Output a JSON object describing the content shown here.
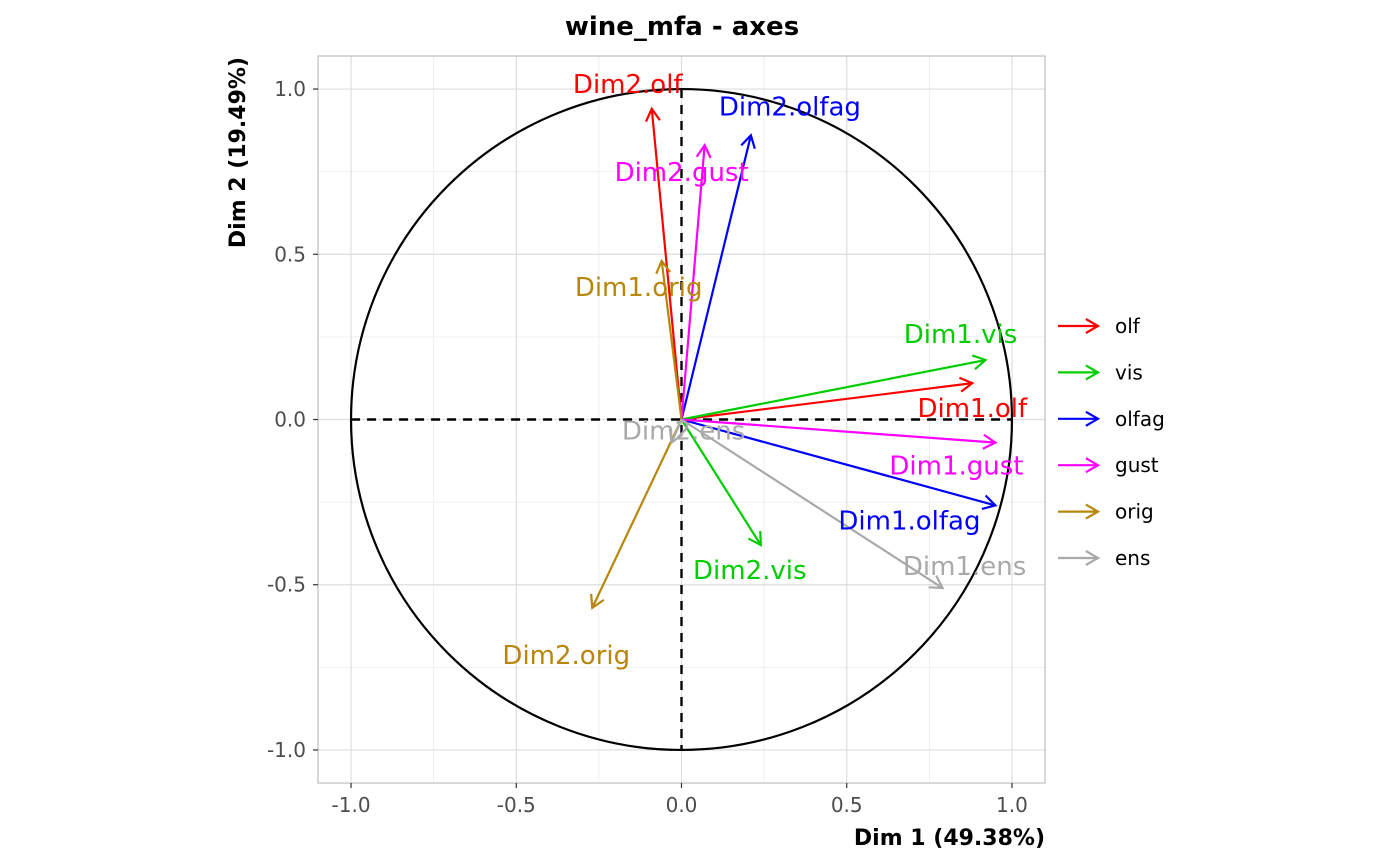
{
  "chart_data": {
    "type": "scatter",
    "title": "wine_mfa - axes",
    "xlabel": "Dim 1 (49.38%)",
    "ylabel": "Dim 2 (19.49%)",
    "xlim": [
      -1.1,
      1.1
    ],
    "ylim": [
      -1.1,
      1.1
    ],
    "x_ticks": [
      -1.0,
      -0.5,
      0.0,
      0.5,
      1.0
    ],
    "x_tick_labels": [
      "-1.0",
      "-0.5",
      "0.0",
      "0.5",
      "1.0"
    ],
    "y_ticks": [
      -1.0,
      -0.5,
      0.0,
      0.5,
      1.0
    ],
    "y_tick_labels": [
      "-1.0",
      "-0.5",
      "0.0",
      "0.5",
      "1.0"
    ],
    "grid": true,
    "unit_circle": true,
    "legend_position": "right",
    "groups": [
      {
        "name": "olf",
        "color": "#ff0000"
      },
      {
        "name": "vis",
        "color": "#00cd00"
      },
      {
        "name": "olfag",
        "color": "#0000ff"
      },
      {
        "name": "gust",
        "color": "#ff00ff"
      },
      {
        "name": "orig",
        "color": "#b8860b"
      },
      {
        "name": "ens",
        "color": "#a9a9a9"
      }
    ],
    "vectors": [
      {
        "label": "Dim1.olf",
        "group": "olf",
        "x": 0.88,
        "y": 0.11
      },
      {
        "label": "Dim2.olf",
        "group": "olf",
        "x": -0.09,
        "y": 0.94
      },
      {
        "label": "Dim1.vis",
        "group": "vis",
        "x": 0.92,
        "y": 0.18
      },
      {
        "label": "Dim2.vis",
        "group": "vis",
        "x": 0.24,
        "y": -0.38
      },
      {
        "label": "Dim1.olfag",
        "group": "olfag",
        "x": 0.95,
        "y": -0.26
      },
      {
        "label": "Dim2.olfag",
        "group": "olfag",
        "x": 0.21,
        "y": 0.86
      },
      {
        "label": "Dim1.gust",
        "group": "gust",
        "x": 0.95,
        "y": -0.07
      },
      {
        "label": "Dim2.gust",
        "group": "gust",
        "x": 0.07,
        "y": 0.83
      },
      {
        "label": "Dim1.orig",
        "group": "orig",
        "x": -0.06,
        "y": 0.48
      },
      {
        "label": "Dim2.orig",
        "group": "orig",
        "x": -0.27,
        "y": -0.57
      },
      {
        "label": "Dim1.ens",
        "group": "ens",
        "x": 0.79,
        "y": -0.51
      },
      {
        "label": "Dim2.ens",
        "group": "ens",
        "x": -0.03,
        "y": -0.07
      }
    ]
  }
}
